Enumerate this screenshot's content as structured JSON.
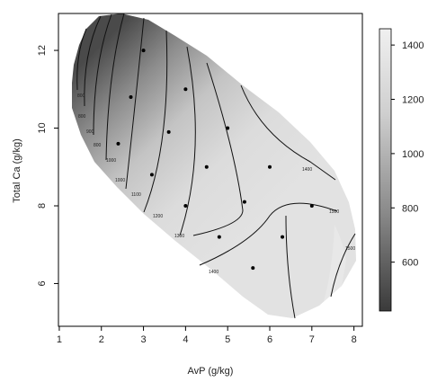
{
  "chart_data": {
    "type": "heatmap",
    "title": "",
    "xlabel": "AvP (g/kg)",
    "ylabel": "Total Ca (g/kg)",
    "xlim": [
      1,
      8
    ],
    "ylim": [
      5,
      13
    ],
    "x_ticks": [
      "1",
      "2",
      "3",
      "4",
      "5",
      "6",
      "7",
      "8"
    ],
    "y_ticks": [
      "6",
      "8",
      "10",
      "12"
    ],
    "colorbar": {
      "range": [
        420,
        1460
      ],
      "ticks": [
        "600",
        "800",
        "1000",
        "1200",
        "1400"
      ],
      "low_color": "#3a3a3a",
      "high_color": "#f0f0f0"
    },
    "contour_labels": [
      "800",
      "900",
      "1000",
      "1100",
      "1200",
      "1300",
      "1400",
      "1500"
    ],
    "points": [
      {
        "x": 3.0,
        "y": 12.0
      },
      {
        "x": 2.7,
        "y": 10.8
      },
      {
        "x": 4.0,
        "y": 11.0
      },
      {
        "x": 5.0,
        "y": 10.0
      },
      {
        "x": 2.4,
        "y": 9.6
      },
      {
        "x": 3.6,
        "y": 9.9
      },
      {
        "x": 4.5,
        "y": 9.0
      },
      {
        "x": 6.0,
        "y": 9.0
      },
      {
        "x": 3.2,
        "y": 8.8
      },
      {
        "x": 4.0,
        "y": 8.0
      },
      {
        "x": 5.4,
        "y": 8.1
      },
      {
        "x": 7.0,
        "y": 8.0
      },
      {
        "x": 4.8,
        "y": 7.2
      },
      {
        "x": 6.3,
        "y": 7.2
      },
      {
        "x": 5.6,
        "y": 6.4
      }
    ]
  }
}
